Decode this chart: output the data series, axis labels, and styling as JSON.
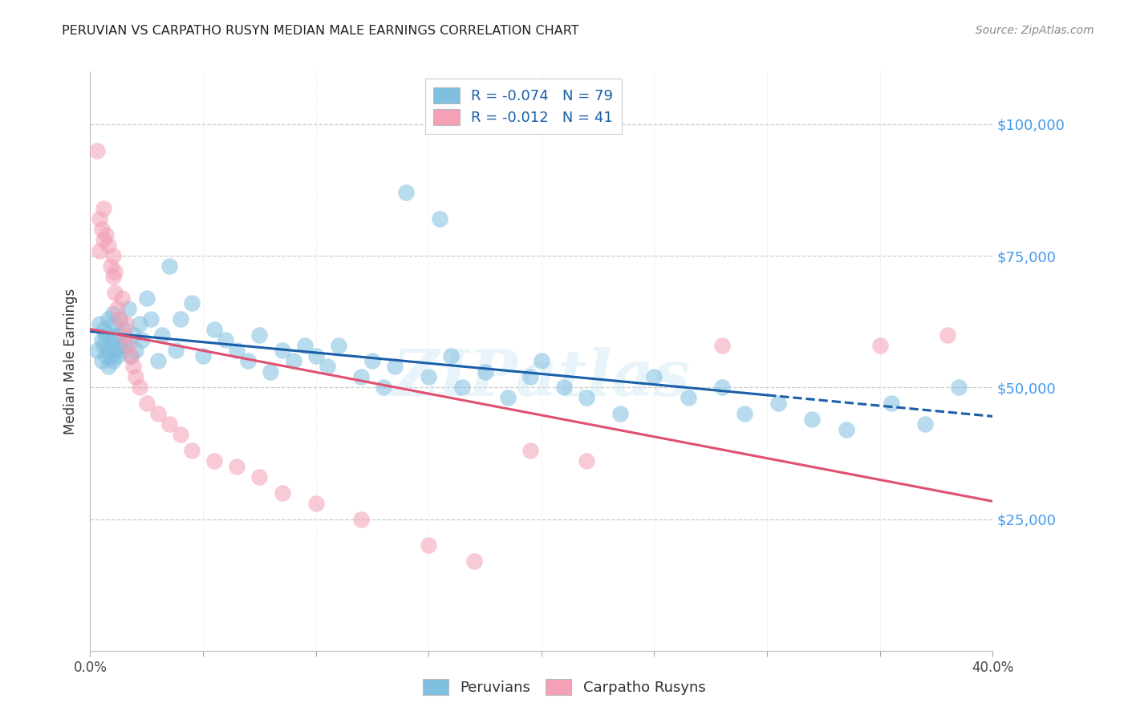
{
  "title": "PERUVIAN VS CARPATHO RUSYN MEDIAN MALE EARNINGS CORRELATION CHART",
  "source": "Source: ZipAtlas.com",
  "ylabel": "Median Male Earnings",
  "xlim": [
    0.0,
    0.4
  ],
  "ylim": [
    0,
    110000
  ],
  "ytick_positions": [
    0,
    25000,
    50000,
    75000,
    100000
  ],
  "ytick_labels": [
    "",
    "$25,000",
    "$50,000",
    "$75,000",
    "$100,000"
  ],
  "xtick_positions": [
    0.0,
    0.05,
    0.1,
    0.15,
    0.2,
    0.25,
    0.3,
    0.35,
    0.4
  ],
  "xtick_labels": [
    "0.0%",
    "",
    "",
    "",
    "",
    "",
    "",
    "",
    "40.0%"
  ],
  "color_blue": "#7fbfdf",
  "color_pink": "#f4a0b5",
  "color_blue_line": "#1a5fa8",
  "color_pink_line": "#e05070",
  "color_ytick": "#4499ee",
  "watermark": "ZIPatlas",
  "peru_x": [
    0.003,
    0.004,
    0.005,
    0.005,
    0.006,
    0.006,
    0.007,
    0.007,
    0.008,
    0.008,
    0.008,
    0.009,
    0.009,
    0.01,
    0.01,
    0.01,
    0.011,
    0.011,
    0.012,
    0.012,
    0.013,
    0.013,
    0.014,
    0.015,
    0.015,
    0.016,
    0.017,
    0.018,
    0.019,
    0.02,
    0.022,
    0.023,
    0.025,
    0.027,
    0.03,
    0.032,
    0.035,
    0.038,
    0.04,
    0.045,
    0.05,
    0.055,
    0.06,
    0.065,
    0.07,
    0.075,
    0.08,
    0.085,
    0.09,
    0.095,
    0.1,
    0.105,
    0.11,
    0.12,
    0.125,
    0.13,
    0.135,
    0.14,
    0.15,
    0.155,
    0.16,
    0.165,
    0.175,
    0.185,
    0.195,
    0.2,
    0.21,
    0.22,
    0.235,
    0.25,
    0.265,
    0.28,
    0.29,
    0.305,
    0.32,
    0.335,
    0.355,
    0.37,
    0.385
  ],
  "peru_y": [
    57000,
    62000,
    55000,
    59000,
    58000,
    61000,
    56000,
    60000,
    54000,
    57000,
    63000,
    56000,
    59000,
    55000,
    60000,
    64000,
    57000,
    62000,
    56000,
    60000,
    58000,
    63000,
    57000,
    61000,
    59000,
    58000,
    65000,
    56000,
    60000,
    57000,
    62000,
    59000,
    67000,
    63000,
    55000,
    60000,
    73000,
    57000,
    63000,
    66000,
    56000,
    61000,
    59000,
    57000,
    55000,
    60000,
    53000,
    57000,
    55000,
    58000,
    56000,
    54000,
    58000,
    52000,
    55000,
    50000,
    54000,
    87000,
    52000,
    82000,
    56000,
    50000,
    53000,
    48000,
    52000,
    55000,
    50000,
    48000,
    45000,
    52000,
    48000,
    50000,
    45000,
    47000,
    44000,
    42000,
    47000,
    43000,
    50000
  ],
  "carp_x": [
    0.003,
    0.004,
    0.004,
    0.005,
    0.006,
    0.006,
    0.007,
    0.008,
    0.009,
    0.01,
    0.01,
    0.011,
    0.011,
    0.012,
    0.013,
    0.014,
    0.015,
    0.016,
    0.017,
    0.018,
    0.019,
    0.02,
    0.022,
    0.025,
    0.03,
    0.035,
    0.04,
    0.045,
    0.055,
    0.065,
    0.075,
    0.085,
    0.1,
    0.12,
    0.15,
    0.17,
    0.195,
    0.22,
    0.28,
    0.35,
    0.38
  ],
  "carp_y": [
    95000,
    82000,
    76000,
    80000,
    78000,
    84000,
    79000,
    77000,
    73000,
    75000,
    71000,
    68000,
    72000,
    65000,
    63000,
    67000,
    60000,
    62000,
    58000,
    56000,
    54000,
    52000,
    50000,
    47000,
    45000,
    43000,
    41000,
    38000,
    36000,
    35000,
    33000,
    30000,
    28000,
    25000,
    20000,
    17000,
    38000,
    36000,
    58000,
    58000,
    60000
  ]
}
